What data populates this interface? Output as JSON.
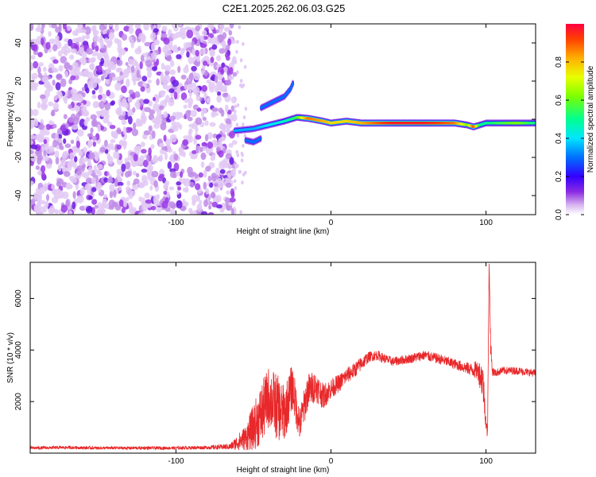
{
  "title": "C2E1.2025.262.06.03.G25",
  "chart_data": [
    {
      "type": "heatmap",
      "name": "spectrogram",
      "xlabel": "Height of straight line (km)",
      "ylabel": "Frequency (Hz)",
      "xlim": [
        -194,
        132
      ],
      "ylim": [
        -50,
        50
      ],
      "xticks": [
        -100,
        0,
        100
      ],
      "xtick_labels": [
        "-100",
        "0",
        "100"
      ],
      "yticks": [
        -40,
        -20,
        0,
        20,
        40
      ],
      "ytick_labels": [
        "-40",
        "-20",
        "0",
        "20",
        "40"
      ],
      "noise_region_x": [
        -194,
        -62
      ],
      "colorbar": {
        "label": "Normalized spectral amplitude",
        "range": [
          0,
          1
        ],
        "ticks": [
          0.0,
          0.2,
          0.4,
          0.6,
          0.8
        ],
        "tick_labels": [
          "0.0",
          "0.2",
          "0.4",
          "0.6",
          "0.8"
        ],
        "colors": [
          "#d8b6f0",
          "#8a2be2",
          "#3300ff",
          "#0070ff",
          "#00e5ff",
          "#00ff90",
          "#7cff00",
          "#e8ff00",
          "#ffb000",
          "#ff4000",
          "#ff0040"
        ]
      },
      "traces": [
        {
          "name": "main",
          "x": [
            -62,
            -50,
            -40,
            -30,
            -22,
            -15,
            -5,
            0,
            10,
            20,
            40,
            60,
            80,
            88,
            92,
            96,
            100,
            110,
            120,
            132
          ],
          "y": [
            -6,
            -5,
            -3,
            -1,
            1,
            0.5,
            -1,
            -2,
            -1,
            -2,
            -2,
            -2,
            -2,
            -3,
            -4,
            -3,
            -2,
            -2,
            -2,
            -2
          ],
          "amp": [
            0.35,
            0.35,
            0.4,
            0.45,
            0.55,
            0.85,
            0.8,
            0.75,
            0.75,
            0.8,
            0.95,
            0.95,
            0.85,
            0.6,
            0.9,
            0.5,
            0.5,
            0.55,
            0.6,
            0.5
          ]
        },
        {
          "name": "upper-branch",
          "x": [
            -45,
            -40,
            -35,
            -30,
            -26,
            -24
          ],
          "y": [
            6,
            8,
            10,
            12,
            16,
            20
          ],
          "amp": [
            0.3,
            0.3,
            0.3,
            0.3,
            0.3,
            0.3
          ]
        },
        {
          "name": "lower-branch",
          "x": [
            -55,
            -50,
            -45
          ],
          "y": [
            -11,
            -12,
            -10
          ],
          "amp": [
            0.3,
            0.3,
            0.3
          ]
        }
      ]
    },
    {
      "type": "line",
      "name": "snr",
      "xlabel": "Height of straight line (km)",
      "ylabel": "SNR (10 * v/v)",
      "xlim": [
        -194,
        132
      ],
      "ylim": [
        0,
        7400
      ],
      "xticks": [
        -100,
        0,
        100
      ],
      "xtick_labels": [
        "-100",
        "0",
        "100"
      ],
      "yticks": [
        2000,
        4000,
        6000
      ],
      "ytick_labels": [
        "2000",
        "4000",
        "6000"
      ],
      "color": "#e8282a",
      "series": [
        {
          "name": "SNR",
          "x": [
            -194,
            -170,
            -150,
            -120,
            -100,
            -80,
            -65,
            -55,
            -50,
            -45,
            -40,
            -35,
            -30,
            -25,
            -20,
            -15,
            -10,
            -5,
            0,
            5,
            10,
            15,
            20,
            25,
            30,
            35,
            40,
            50,
            60,
            70,
            80,
            90,
            95,
            98,
            100,
            101,
            102,
            103,
            104,
            106,
            110,
            120,
            132
          ],
          "y": [
            200,
            220,
            200,
            200,
            200,
            220,
            250,
            600,
            1000,
            1500,
            2200,
            1800,
            1500,
            2600,
            1100,
            2400,
            2600,
            2200,
            2500,
            2700,
            3000,
            3200,
            3500,
            3750,
            3800,
            3650,
            3550,
            3650,
            3800,
            3650,
            3450,
            3250,
            3200,
            2800,
            1200,
            700,
            7400,
            4200,
            3200,
            3100,
            3200,
            3200,
            3100
          ],
          "noise": [
            60,
            60,
            60,
            60,
            60,
            70,
            120,
            500,
            900,
            1200,
            1200,
            1300,
            1100,
            900,
            700,
            700,
            600,
            500,
            400,
            350,
            320,
            300,
            280,
            200,
            200,
            180,
            180,
            180,
            200,
            200,
            200,
            250,
            400,
            800,
            300,
            200,
            100,
            400,
            200,
            150,
            150,
            150,
            150
          ]
        }
      ]
    }
  ]
}
